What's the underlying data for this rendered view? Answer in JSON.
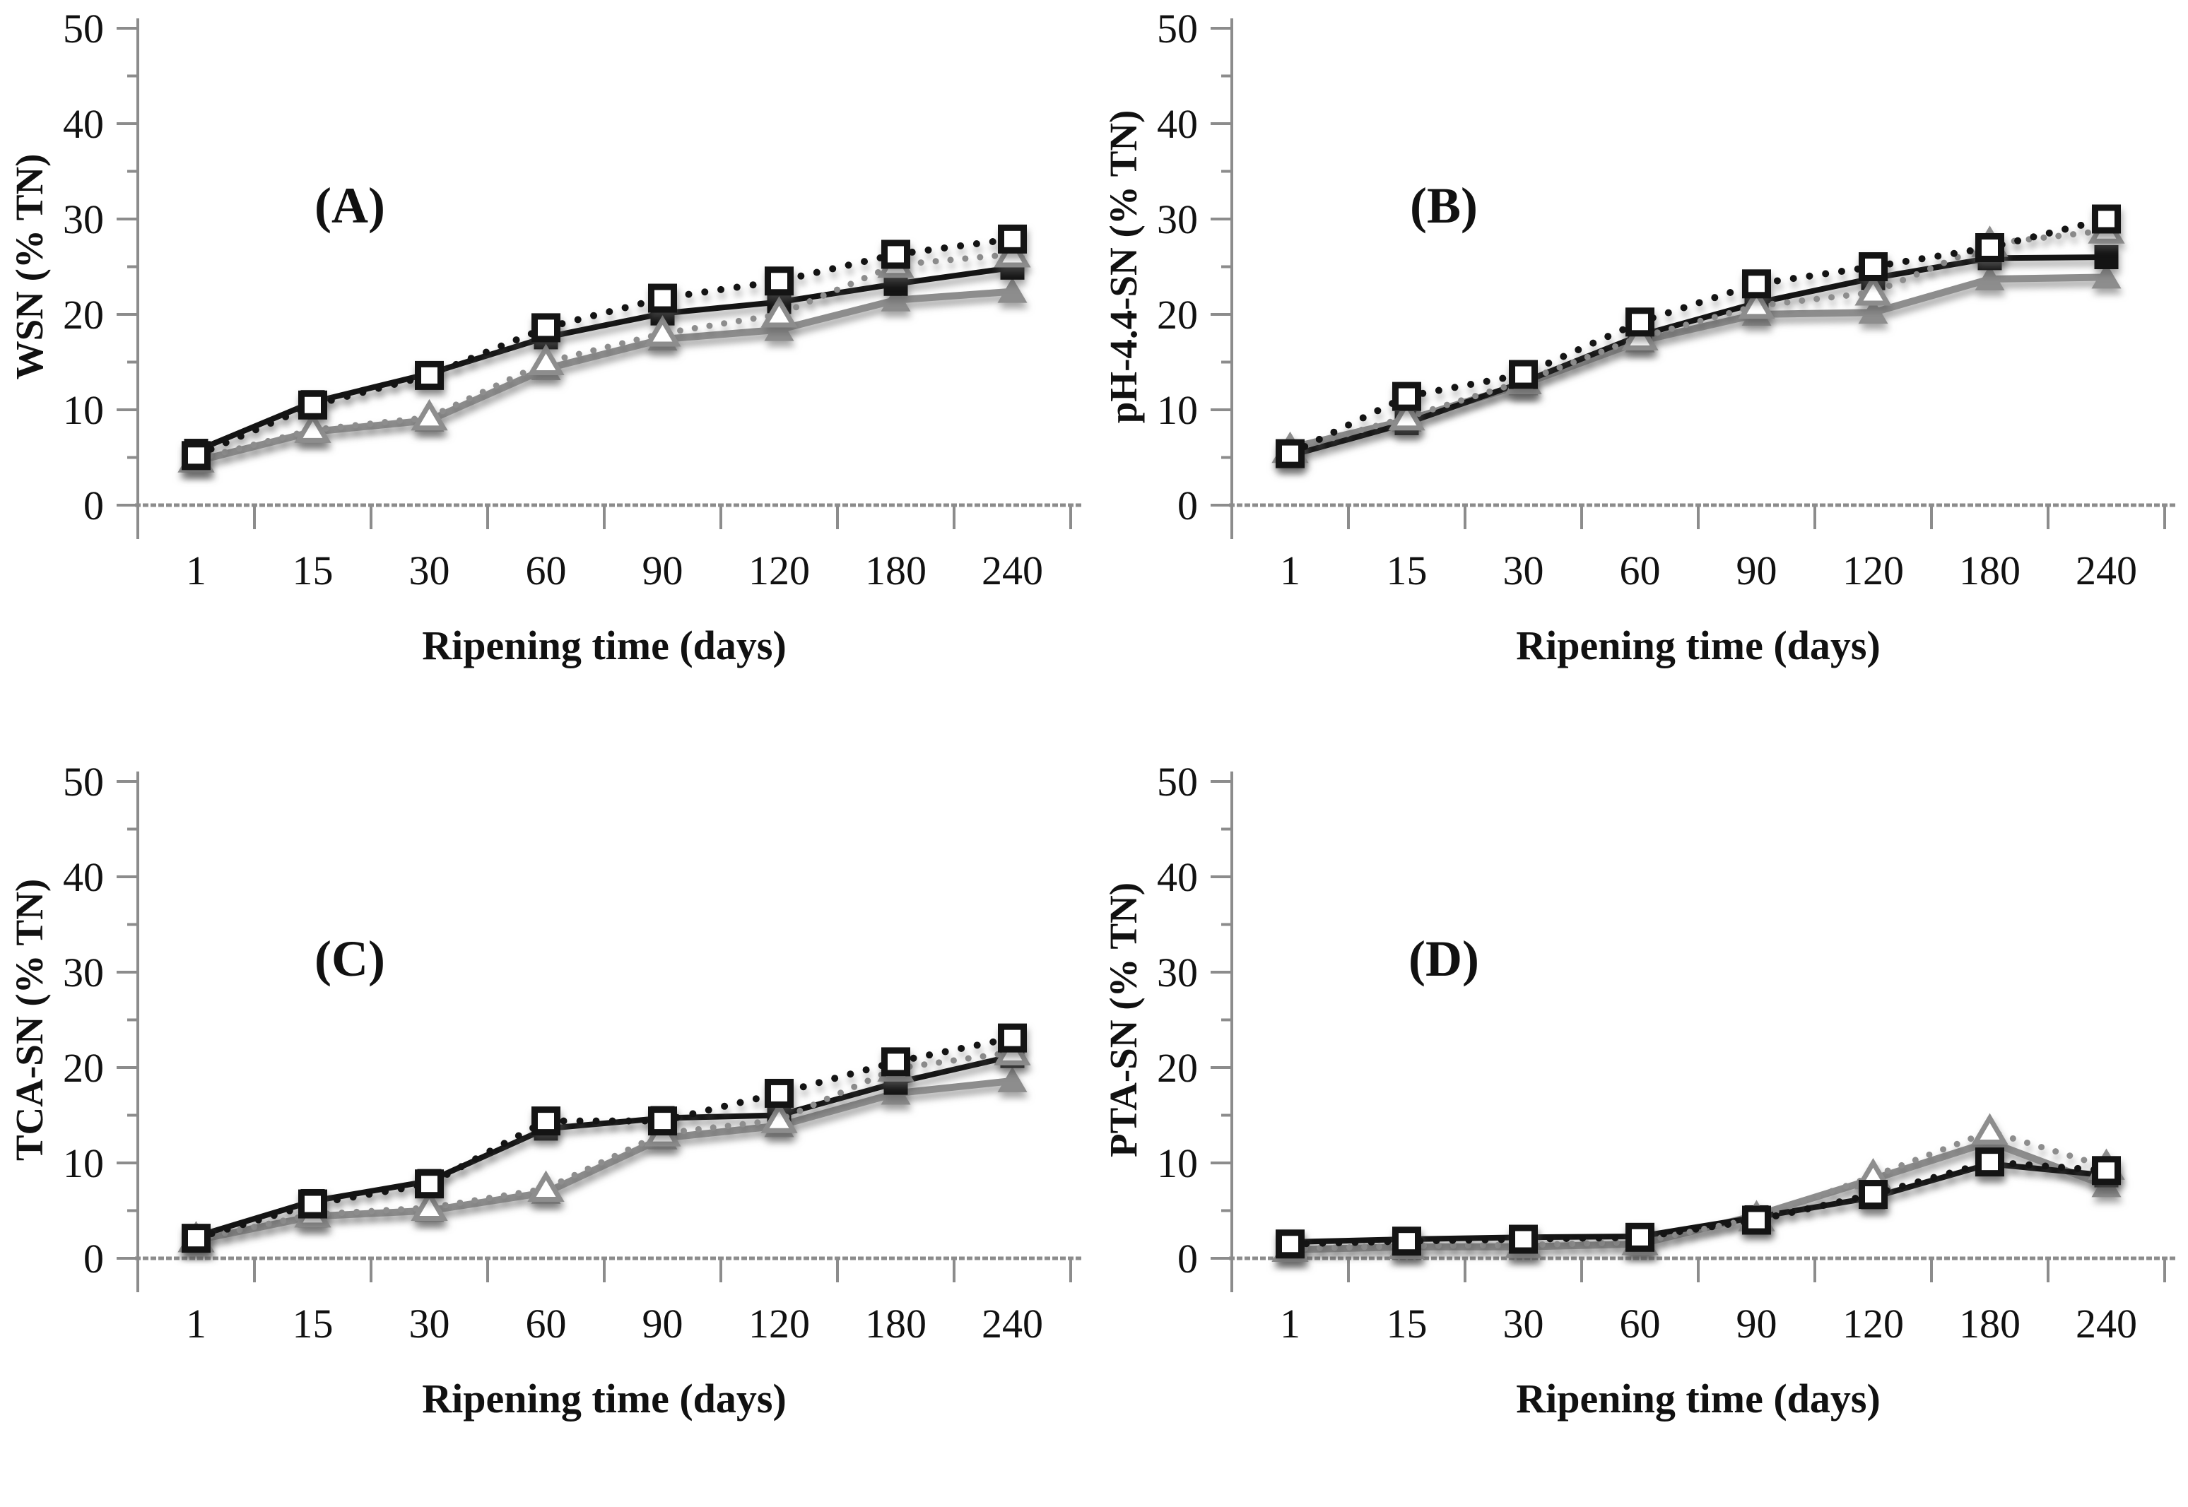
{
  "page": {
    "background": "#ffffff"
  },
  "colors": {
    "black_series": "#141414",
    "gray_series": "#8d8d8d",
    "axis": "#8c8c8c",
    "text": "#111111",
    "marker_open_fill": "#ffffff"
  },
  "series_meta": [
    {
      "style": "tri_solid",
      "name": "filled-triangle-solid-gray",
      "color_key": "gray_series",
      "line": "solid",
      "marker": "triangle-filled"
    },
    {
      "style": "sq_solid",
      "name": "filled-square-solid-black",
      "color_key": "black_series",
      "line": "solid",
      "marker": "square-filled"
    },
    {
      "style": "tri_dotted",
      "name": "open-triangle-dotted-gray",
      "color_key": "gray_series",
      "line": "dotted",
      "marker": "triangle-open"
    },
    {
      "style": "sq_dotted",
      "name": "open-square-dotted-black",
      "color_key": "black_series",
      "line": "dotted",
      "marker": "square-open"
    }
  ],
  "chart_data": [
    {
      "type": "line",
      "panel": "(A)",
      "ylabel": "WSN (% TN)",
      "xlabel": "Ripening time (days)",
      "categories": [
        1,
        15,
        30,
        60,
        90,
        120,
        180,
        240
      ],
      "ylim": [
        0,
        50
      ],
      "yticks": [
        0,
        10,
        20,
        30,
        40,
        50
      ],
      "grid": false,
      "legend": "none",
      "series": [
        {
          "style": "tri_solid",
          "name": "filled-triangle-solid-gray",
          "values": [
            4.6,
            7.7,
            8.9,
            14.3,
            17.4,
            18.4,
            21.5,
            22.4
          ]
        },
        {
          "style": "sq_solid",
          "name": "filled-square-solid-black",
          "values": [
            5.7,
            10.8,
            13.8,
            17.6,
            20.1,
            21.3,
            23.2,
            24.9
          ]
        },
        {
          "style": "tri_dotted",
          "name": "open-triangle-dotted-gray",
          "values": [
            4.8,
            7.9,
            9.2,
            15.0,
            18.0,
            20.0,
            25.2,
            26.3
          ]
        },
        {
          "style": "sq_dotted",
          "name": "open-square-dotted-black",
          "values": [
            5.2,
            10.5,
            13.6,
            18.6,
            21.7,
            23.5,
            26.3,
            27.9
          ]
        }
      ]
    },
    {
      "type": "line",
      "panel": "(B)",
      "ylabel": "pH-4.4-SN (% TN)",
      "xlabel": "Ripening time (days)",
      "categories": [
        1,
        15,
        30,
        60,
        90,
        120,
        180,
        240
      ],
      "ylim": [
        0,
        50
      ],
      "yticks": [
        0,
        10,
        20,
        30,
        40,
        50
      ],
      "grid": false,
      "legend": "none",
      "series": [
        {
          "style": "tri_solid",
          "name": "filled-triangle-solid-gray",
          "values": [
            6.0,
            8.9,
            12.7,
            17.2,
            20.0,
            20.2,
            23.7,
            23.9
          ]
        },
        {
          "style": "sq_solid",
          "name": "filled-square-solid-black",
          "values": [
            5.2,
            8.6,
            12.9,
            17.8,
            21.2,
            23.8,
            25.9,
            26.0
          ]
        },
        {
          "style": "tri_dotted",
          "name": "open-triangle-dotted-gray",
          "values": [
            5.8,
            9.2,
            13.0,
            17.6,
            20.9,
            22.3,
            27.4,
            28.8
          ]
        },
        {
          "style": "sq_dotted",
          "name": "open-square-dotted-black",
          "values": [
            5.4,
            11.4,
            13.7,
            19.2,
            23.2,
            25.0,
            27.0,
            30.0
          ]
        }
      ]
    },
    {
      "type": "line",
      "panel": "(C)",
      "ylabel": "TCA-SN (% TN)",
      "xlabel": "Ripening time (days)",
      "categories": [
        1,
        15,
        30,
        60,
        90,
        120,
        180,
        240
      ],
      "ylim": [
        0,
        50
      ],
      "yticks": [
        0,
        10,
        20,
        30,
        40,
        50
      ],
      "grid": false,
      "legend": "none",
      "series": [
        {
          "style": "tri_solid",
          "name": "filled-triangle-solid-gray",
          "values": [
            1.9,
            4.4,
            5.0,
            6.9,
            12.6,
            13.9,
            17.3,
            18.6
          ]
        },
        {
          "style": "sq_solid",
          "name": "filled-square-solid-black",
          "values": [
            2.3,
            6.0,
            8.1,
            13.6,
            14.7,
            15.0,
            18.4,
            21.2
          ]
        },
        {
          "style": "tri_dotted",
          "name": "open-triangle-dotted-gray",
          "values": [
            2.0,
            4.6,
            5.3,
            7.3,
            13.1,
            14.5,
            19.9,
            21.6
          ]
        },
        {
          "style": "sq_dotted",
          "name": "open-square-dotted-black",
          "values": [
            2.1,
            5.7,
            7.8,
            14.4,
            14.4,
            17.3,
            20.6,
            23.1
          ]
        }
      ]
    },
    {
      "type": "line",
      "panel": "(D)",
      "ylabel": "PTA-SN (% TN)",
      "xlabel": "Ripening time (days)",
      "categories": [
        1,
        15,
        30,
        60,
        90,
        120,
        180,
        240
      ],
      "ylim": [
        0,
        50
      ],
      "yticks": [
        0,
        10,
        20,
        30,
        40,
        50
      ],
      "grid": false,
      "legend": "none",
      "series": [
        {
          "style": "tri_solid",
          "name": "filled-triangle-solid-gray",
          "values": [
            0.9,
            1.2,
            1.2,
            1.5,
            4.5,
            8.3,
            12.2,
            7.6
          ]
        },
        {
          "style": "sq_solid",
          "name": "filled-square-solid-black",
          "values": [
            1.7,
            2.0,
            2.2,
            2.3,
            4.3,
            6.4,
            9.9,
            8.7
          ]
        },
        {
          "style": "tri_dotted",
          "name": "open-triangle-dotted-gray",
          "values": [
            1.0,
            1.3,
            1.4,
            1.7,
            4.2,
            8.6,
            13.3,
            9.6
          ]
        },
        {
          "style": "sq_dotted",
          "name": "open-square-dotted-black",
          "values": [
            1.5,
            1.8,
            2.0,
            2.2,
            4.0,
            6.7,
            10.1,
            9.2
          ]
        }
      ]
    }
  ]
}
